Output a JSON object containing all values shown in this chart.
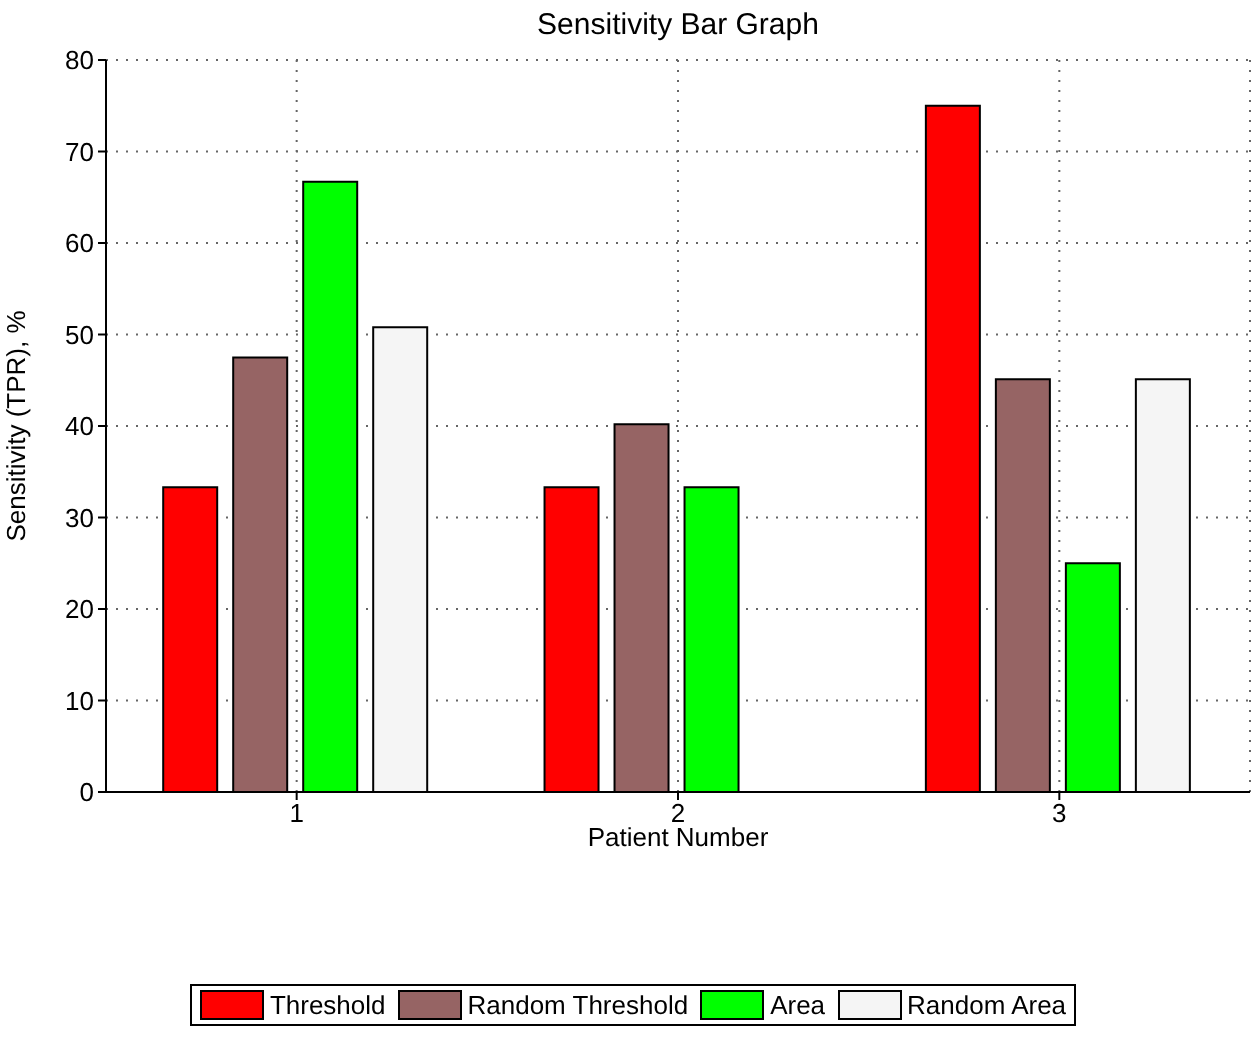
{
  "chart_data": {
    "type": "bar",
    "title": "Sensitivity Bar Graph",
    "xlabel": "Patient Number",
    "ylabel": "Sensitivity (TPR), %",
    "categories": [
      "1",
      "2",
      "3"
    ],
    "series": [
      {
        "name": "Threshold",
        "color": "#ff0000",
        "values": [
          33.3,
          33.3,
          75
        ]
      },
      {
        "name": "Random Threshold",
        "color": "#966464",
        "values": [
          47.5,
          40.2,
          45.1
        ]
      },
      {
        "name": "Area",
        "color": "#00ff00",
        "values": [
          66.7,
          33.3,
          25
        ]
      },
      {
        "name": "Random Area",
        "color": "#f5f5f5",
        "values": [
          50.8,
          null,
          45.1
        ]
      }
    ],
    "ylim": [
      0,
      80
    ],
    "yticks": [
      0,
      10,
      20,
      30,
      40,
      50,
      60,
      70,
      80
    ],
    "grid": true,
    "legend": "bottom"
  }
}
